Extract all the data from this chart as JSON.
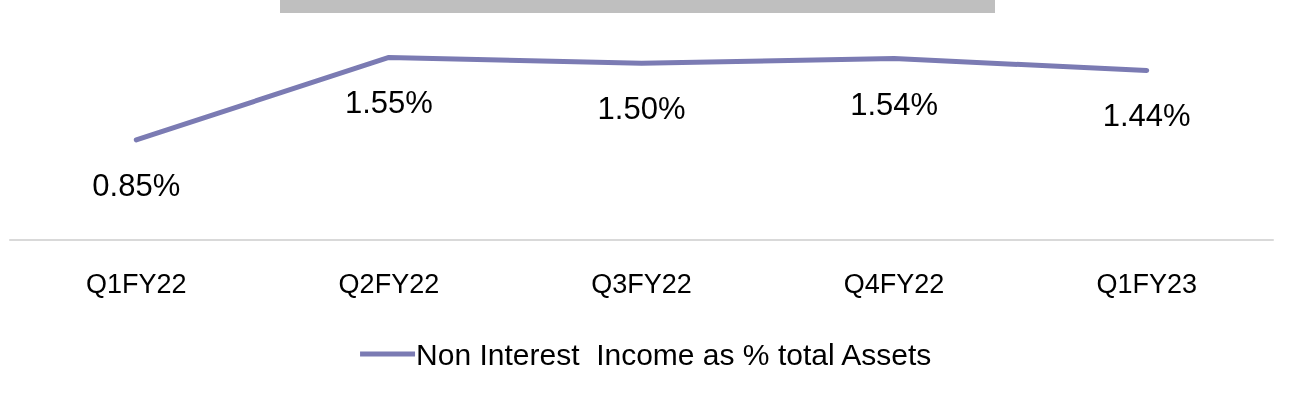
{
  "chart_data": {
    "type": "line",
    "categories": [
      "Q1FY22",
      "Q2FY22",
      "Q3FY22",
      "Q4FY22",
      "Q1FY23"
    ],
    "series": [
      {
        "name": "Non Interest  Income as % total Assets",
        "color": "#7b7bb3",
        "values": [
          0.85,
          1.55,
          1.5,
          1.54,
          1.44
        ],
        "value_labels": [
          "0.85%",
          "1.55%",
          "1.50%",
          "1.54%",
          "1.44%"
        ]
      }
    ],
    "marker": "none",
    "line_style": "solid",
    "grid": false,
    "legend": "bottom",
    "tick_labels": "x"
  }
}
